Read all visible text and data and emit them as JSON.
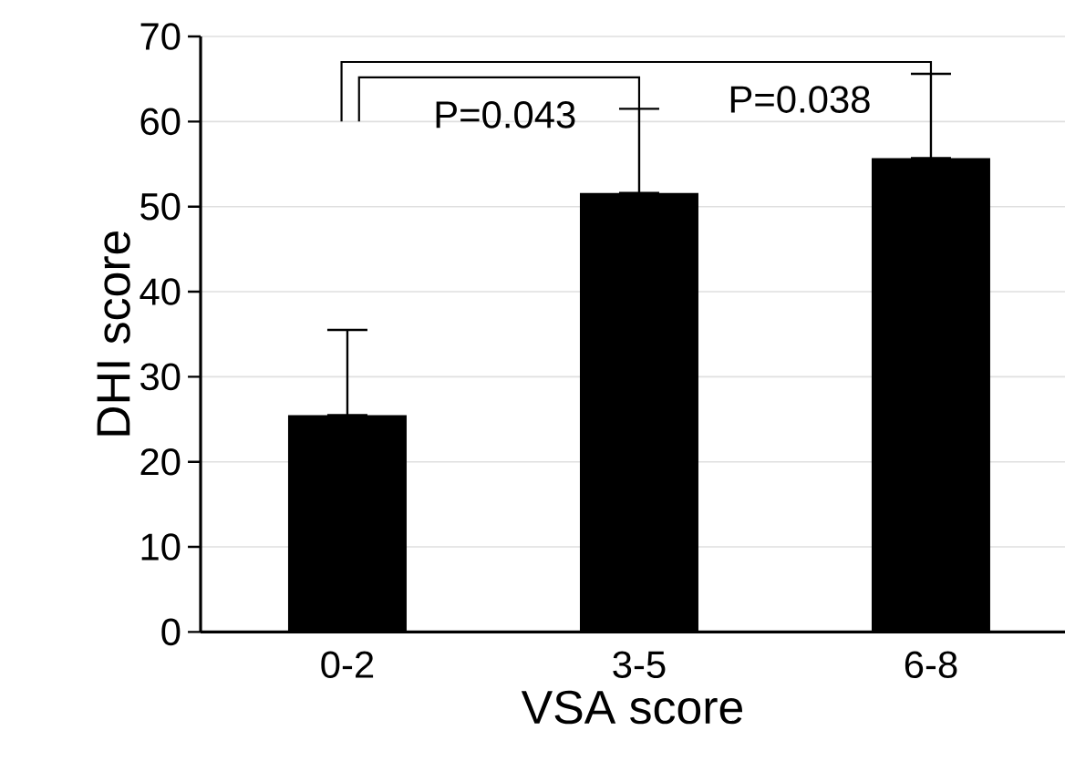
{
  "chart_data": {
    "type": "bar",
    "xlabel": "VSA score",
    "ylabel": "DHI score",
    "categories": [
      "0-2",
      "3-5",
      "6-8"
    ],
    "values": [
      25.5,
      51.6,
      55.7
    ],
    "errors": [
      [
        25.5,
        35.5
      ],
      [
        51.6,
        61.5
      ],
      [
        55.7,
        65.6
      ]
    ],
    "color": "#000000",
    "ylim": [
      0,
      70
    ],
    "yticks": [
      0,
      10,
      20,
      30,
      40,
      50,
      60,
      70
    ],
    "grid": "y",
    "annotations": [
      "P=0.043",
      "P=0.038"
    ]
  }
}
